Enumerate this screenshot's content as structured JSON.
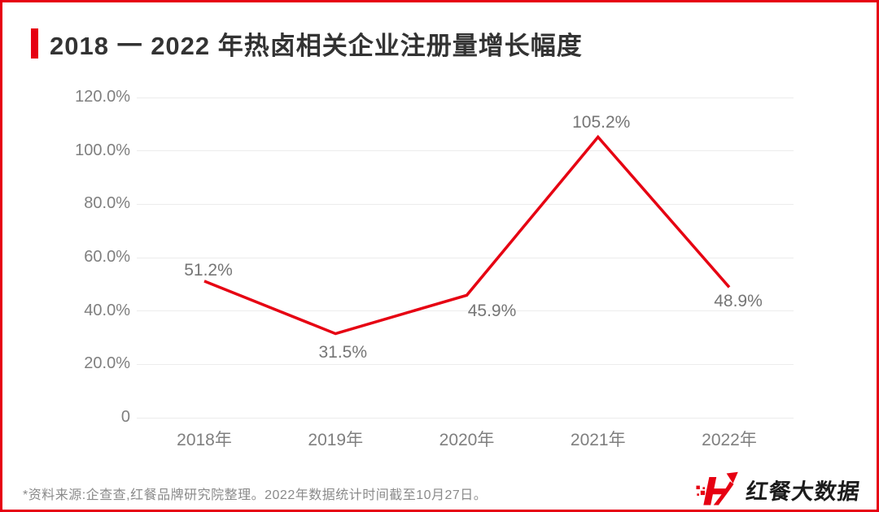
{
  "page": {
    "title": "2018 一 2022 年热卤相关企业注册量增长幅度",
    "footnote": "*资料来源:企查查,红餐品牌研究院整理。2022年数据统计时间截至10月27日。",
    "logo_text": "红餐大数据",
    "accent_color": "#e60012"
  },
  "chart_data": {
    "type": "line",
    "title": "2018 一 2022 年热卤相关企业注册量增长幅度",
    "categories": [
      "2018年",
      "2019年",
      "2020年",
      "2021年",
      "2022年"
    ],
    "values": [
      51.2,
      31.5,
      45.9,
      105.2,
      48.9
    ],
    "point_labels": [
      "51.2%",
      "31.5%",
      "45.9%",
      "105.2%",
      "48.9%"
    ],
    "xlabel": "",
    "ylabel": "",
    "ylim": [
      0,
      120
    ],
    "yticks": [
      0,
      20,
      40,
      60,
      80,
      100,
      120
    ],
    "ytick_labels": [
      "0",
      "20.0%",
      "40.0%",
      "60.0%",
      "80.0%",
      "100.0%",
      "120.0%"
    ],
    "grid": true,
    "legend": "none",
    "line_color": "#e60012"
  }
}
